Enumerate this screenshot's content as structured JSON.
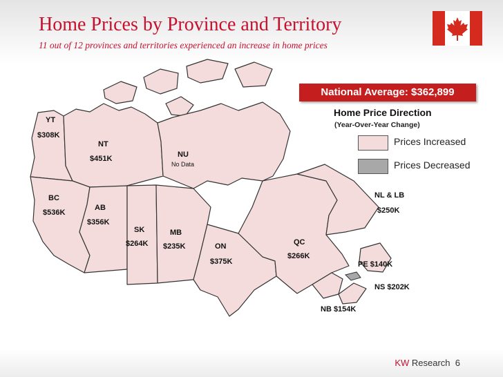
{
  "header": {
    "title": "Home Prices by Province and Territory",
    "subtitle": "11 out of 12 provinces and territories experienced an increase in home prices"
  },
  "national_average": "National Average: $362,899",
  "legend": {
    "title": "Home Price Direction",
    "subtitle": "(Year-Over-Year Change)",
    "items": [
      {
        "label": "Prices Increased",
        "color": "#f4dcdc"
      },
      {
        "label": "Prices Decreased",
        "color": "#a8a8a8"
      }
    ]
  },
  "regions": {
    "yt": {
      "name": "YT",
      "price": "$308K"
    },
    "nt": {
      "name": "NT",
      "price": "$451K"
    },
    "nu": {
      "name": "NU",
      "price": "No Data"
    },
    "bc": {
      "name": "BC",
      "price": "$536K"
    },
    "ab": {
      "name": "AB",
      "price": "$356K"
    },
    "sk": {
      "name": "SK",
      "price": "$264K"
    },
    "mb": {
      "name": "MB",
      "price": "$235K"
    },
    "on": {
      "name": "ON",
      "price": "$375K"
    },
    "qc": {
      "name": "QC",
      "price": "$266K"
    },
    "nl": {
      "name": "NL & LB",
      "price": "$250K"
    },
    "pe": {
      "label": "PE  $140K"
    },
    "ns": {
      "label": "NS  $202K"
    },
    "nb": {
      "label": "NB  $154K"
    }
  },
  "colors": {
    "increased": "#f4dcdc",
    "decreased": "#a8a8a8",
    "accent": "#c8102e",
    "border": "#333333"
  },
  "footer": {
    "brand": "KW",
    "label": "Research",
    "page": "6"
  }
}
